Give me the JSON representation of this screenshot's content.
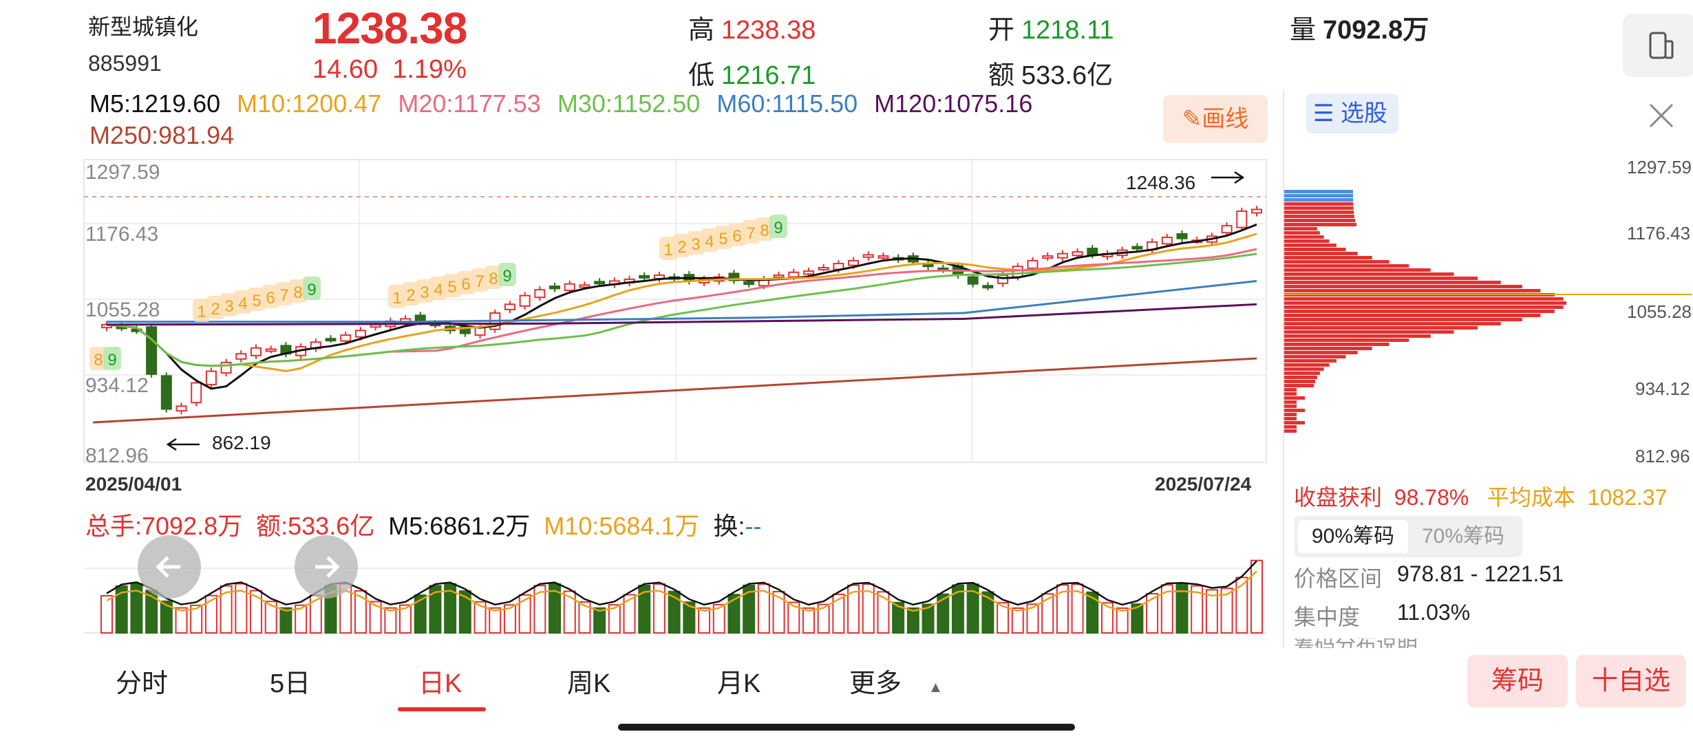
{
  "header": {
    "name": "新型城镇化",
    "code": "885991",
    "price": "1238.38",
    "change": "14.60",
    "change_pct": "1.19%",
    "high_label": "高",
    "high": "1238.38",
    "low_label": "低",
    "low": "1216.71",
    "open_label": "开",
    "open": "1218.11",
    "amount_label": "额",
    "amount": "533.6亿",
    "volume_label": "量",
    "volume": "7092.8万"
  },
  "ma": {
    "m5": "M5:1219.60",
    "m10": "M10:1200.47",
    "m20": "M20:1177.53",
    "m30": "M30:1152.50",
    "m60": "M60:1115.50",
    "m120": "M120:1075.16",
    "m250": "M250:981.94"
  },
  "colors": {
    "up": "#e23131",
    "down": "#2e6b1a",
    "m5": "#111111",
    "m10": "#e9a21a",
    "m20": "#ea6a80",
    "m30": "#6bc04b",
    "m60": "#3a7fc0",
    "m120": "#5a0f5a",
    "m250": "#b5452f"
  },
  "draw_button": "画线",
  "chart": {
    "y_ticks": [
      "1297.59",
      "1176.43",
      "1055.28",
      "934.12",
      "812.96"
    ],
    "start_date": "2025/04/01",
    "end_date": "2025/07/24",
    "high_mark": "1248.36",
    "low_mark": "862.19",
    "td_seq1": [
      "8",
      "9"
    ],
    "td_seq2": [
      "1",
      "2",
      "3",
      "4",
      "5",
      "6",
      "7",
      "8",
      "9"
    ],
    "td_seq3": [
      "1",
      "2",
      "3",
      "4",
      "5",
      "6",
      "7",
      "8",
      "9"
    ],
    "td_seq4": [
      "1",
      "2",
      "3",
      "4",
      "5",
      "6",
      "7",
      "8",
      "9"
    ]
  },
  "chip_panel": {
    "select_label": "选股",
    "y_ticks": [
      "1297.59",
      "1176.43",
      "1055.28",
      "934.12",
      "812.96"
    ],
    "profit_label": "收盘获利",
    "profit": "98.78%",
    "avg_cost_label": "平均成本",
    "avg_cost": "1082.37",
    "seg_90": "90%筹码",
    "seg_70": "70%筹码",
    "range_label": "价格区间",
    "range": "978.81 - 1221.51",
    "concentration_label": "集中度",
    "concentration": "11.03%",
    "note_label": "筹码分布说明"
  },
  "volume": {
    "total": "总手:7092.8万",
    "amount": "额:533.6亿",
    "m5": "M5:6861.2万",
    "m10": "M10:5684.1万",
    "turnover_label": "换:",
    "turnover": "--"
  },
  "tabs": [
    "分时",
    "5日",
    "日K",
    "周K",
    "月K",
    "更多"
  ],
  "buttons": {
    "chips": "筹码",
    "add_watch": "十自选"
  }
}
